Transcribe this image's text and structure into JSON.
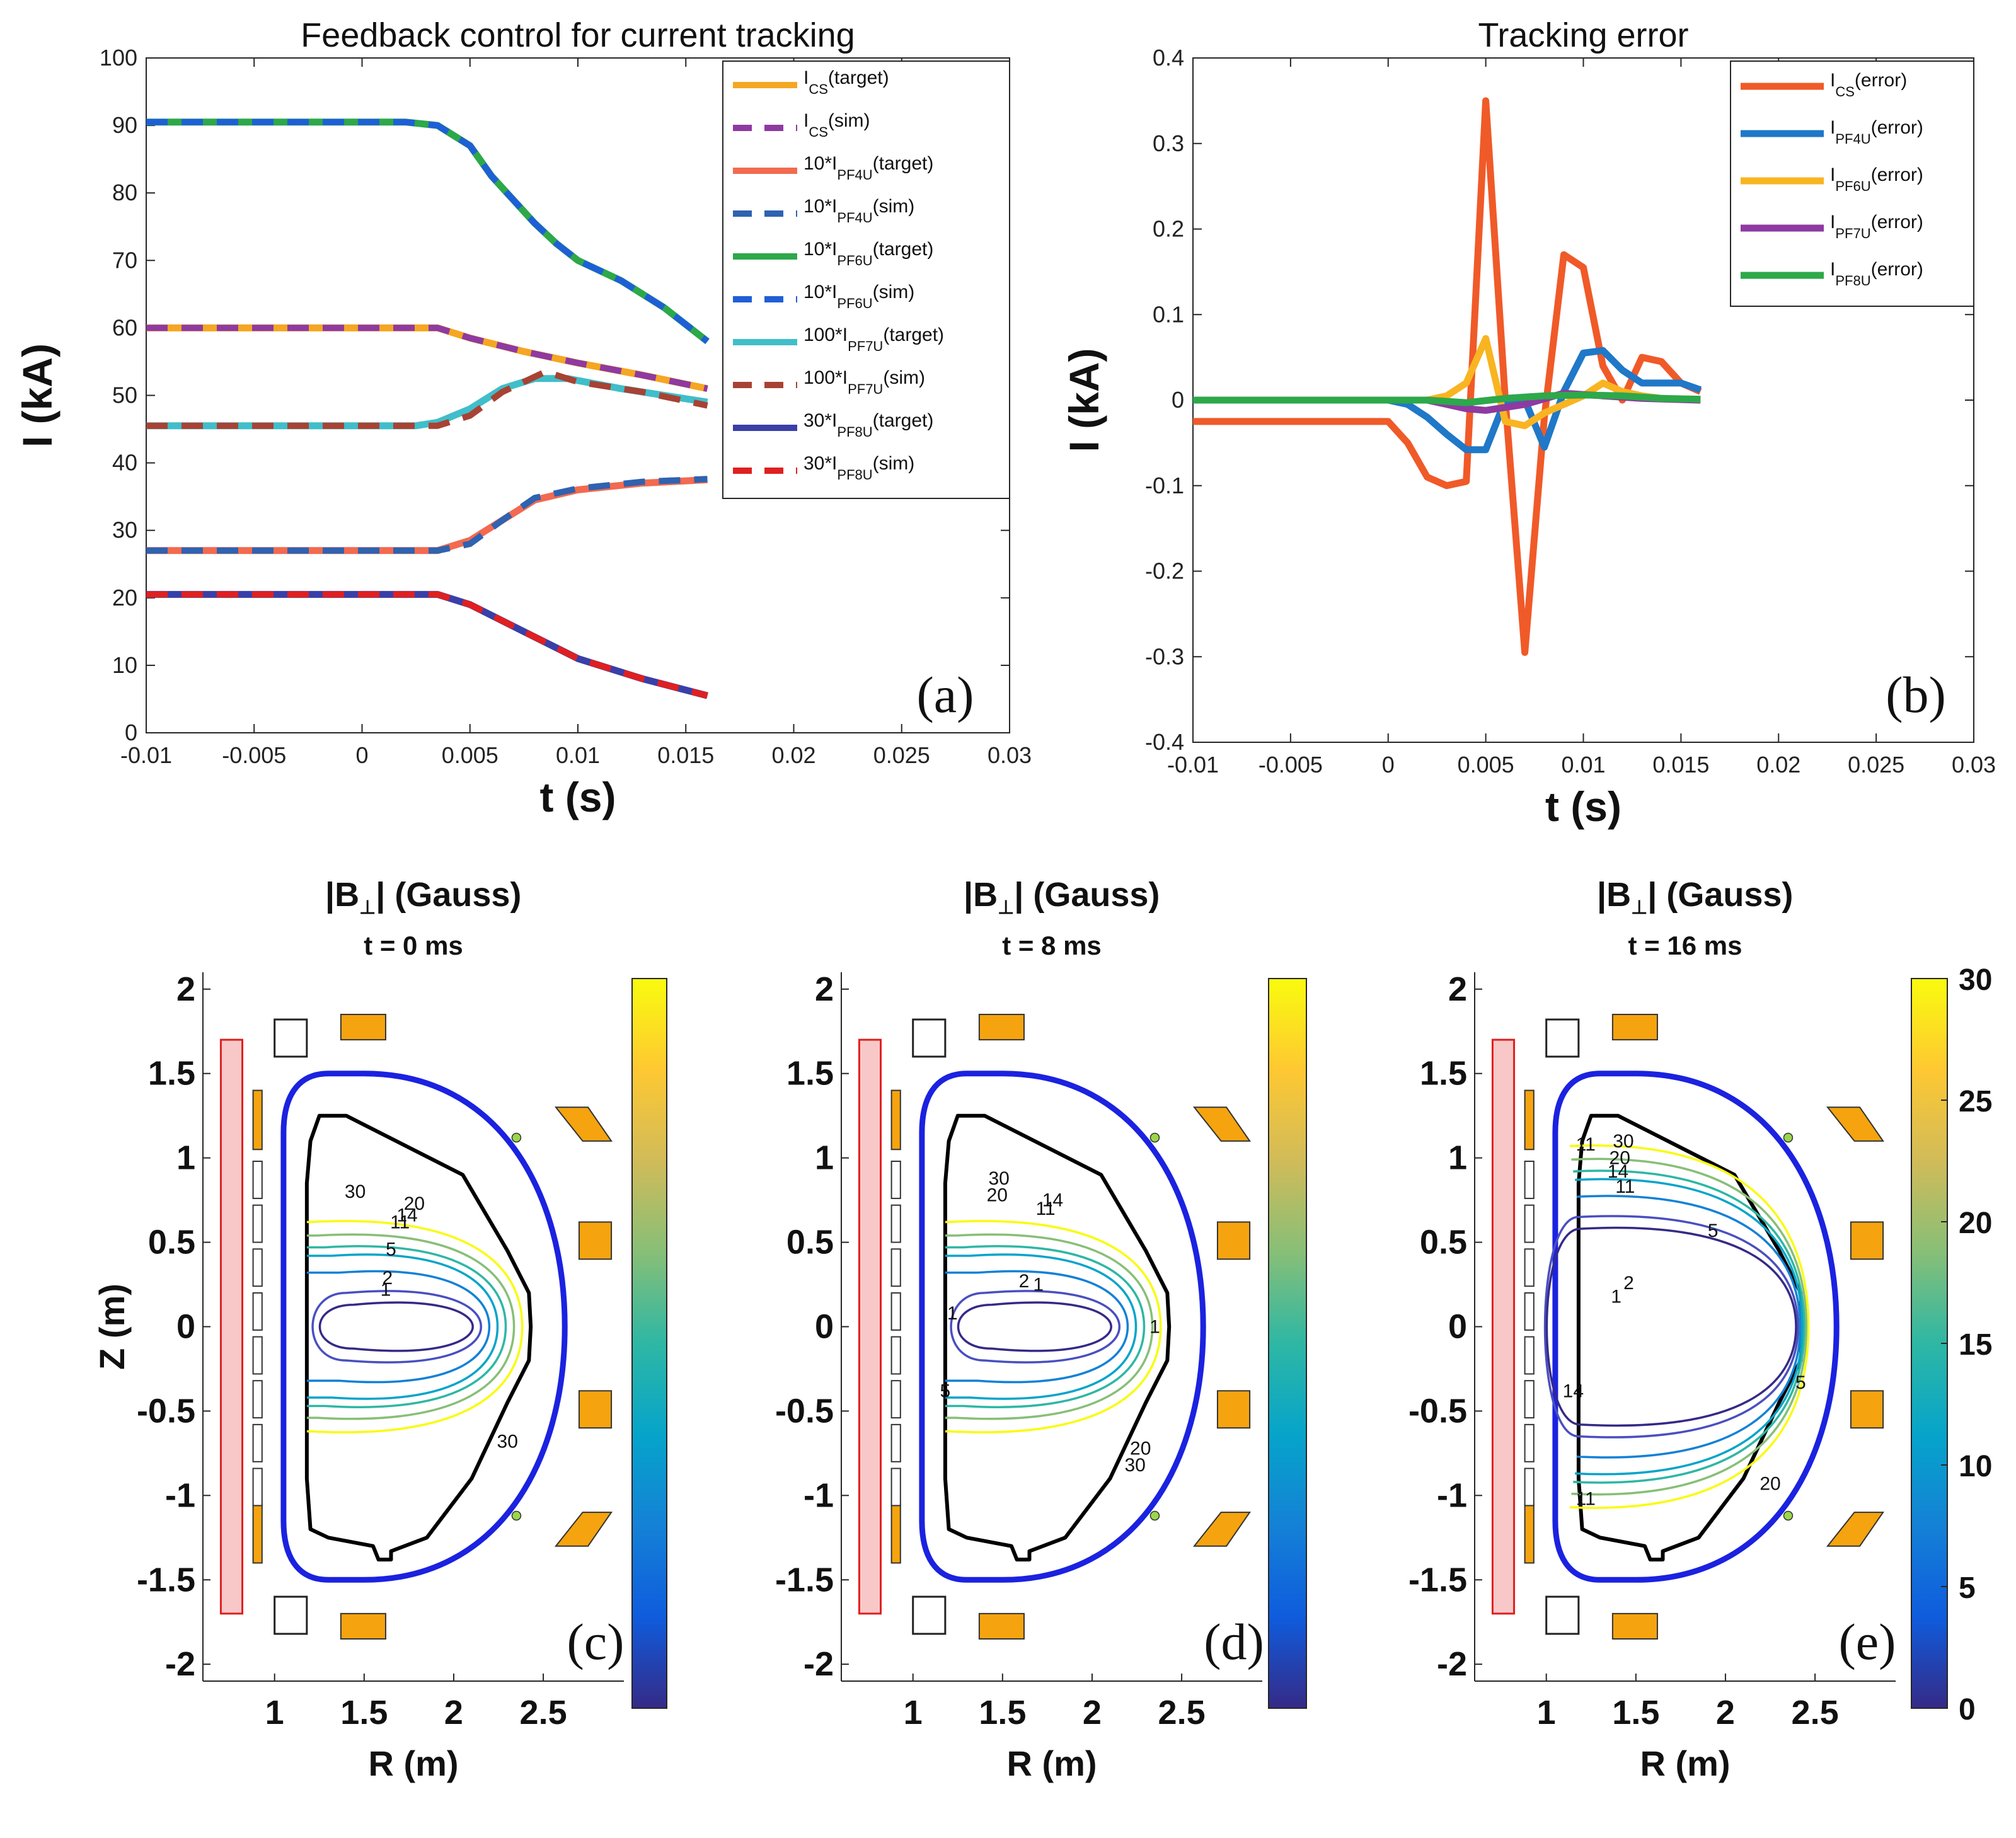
{
  "chart_data": [
    {
      "id": "a",
      "type": "line",
      "title": "Feedback control for current tracking",
      "xlabel": "t (s)",
      "ylabel": "I (kA)",
      "xlim": [
        -0.01,
        0.03
      ],
      "ylim": [
        0,
        100
      ],
      "xticks": [
        "-0.01",
        "-0.005",
        "0",
        "0.005",
        "0.01",
        "0.015",
        "0.02",
        "0.025",
        "0.03"
      ],
      "yticks": [
        "0",
        "10",
        "20",
        "30",
        "40",
        "50",
        "60",
        "70",
        "80",
        "90",
        "100"
      ],
      "panel_label": "(a)",
      "series": [
        {
          "name": "I_CS(target)",
          "legend_main": "I",
          "legend_sub": "CS",
          "legend_tail": "(target)",
          "color": "#F5A623",
          "dash": false,
          "x": [
            -0.01,
            0.0035,
            0.005,
            0.0075,
            0.01,
            0.013,
            0.016
          ],
          "y": [
            60,
            60,
            58.5,
            56.5,
            54.8,
            53,
            51
          ]
        },
        {
          "name": "I_CS(sim)",
          "legend_main": "I",
          "legend_sub": "CS",
          "legend_tail": "(sim)",
          "color": "#8E3AA1",
          "dash": true,
          "x": [
            -0.01,
            0.0035,
            0.005,
            0.0075,
            0.01,
            0.013,
            0.016
          ],
          "y": [
            60,
            60,
            58.5,
            56.5,
            54.8,
            53,
            51
          ]
        },
        {
          "name": "10*I_PF4U(target)",
          "legend_main": "10*I",
          "legend_sub": "PF4U",
          "legend_tail": "(target)",
          "color": "#F26A50",
          "dash": false,
          "x": [
            -0.01,
            0.0035,
            0.005,
            0.0065,
            0.008,
            0.01,
            0.013,
            0.016
          ],
          "y": [
            27,
            27,
            28.5,
            31.5,
            34.5,
            36,
            37,
            37.5
          ]
        },
        {
          "name": "10*I_PF4U(sim)",
          "legend_main": "10*I",
          "legend_sub": "PF4U",
          "legend_tail": "(sim)",
          "color": "#2F62B0",
          "dash": true,
          "x": [
            -0.01,
            0.0035,
            0.005,
            0.0065,
            0.008,
            0.01,
            0.013,
            0.016
          ],
          "y": [
            27,
            27,
            28,
            31.5,
            34.8,
            36.2,
            37.2,
            37.6
          ]
        },
        {
          "name": "10*I_PF6U(target)",
          "legend_main": "10*I",
          "legend_sub": "PF6U",
          "legend_tail": "(target)",
          "color": "#2DA84A",
          "dash": false,
          "x": [
            -0.01,
            0.002,
            0.0035,
            0.004,
            0.005,
            0.006,
            0.008,
            0.009,
            0.01,
            0.012,
            0.014,
            0.016
          ],
          "y": [
            90.5,
            90.5,
            90,
            89,
            87,
            82.5,
            75.5,
            72.5,
            70,
            67,
            63,
            58
          ]
        },
        {
          "name": "10*I_PF6U(sim)",
          "legend_main": "10*I",
          "legend_sub": "PF6U",
          "legend_tail": "(sim)",
          "color": "#1F5FD6",
          "dash": true,
          "x": [
            -0.01,
            0.002,
            0.0035,
            0.004,
            0.005,
            0.006,
            0.008,
            0.009,
            0.01,
            0.012,
            0.014,
            0.016
          ],
          "y": [
            90.5,
            90.5,
            90,
            89,
            87,
            82.5,
            75.5,
            72.5,
            70,
            67,
            63,
            58
          ]
        },
        {
          "name": "100*I_PF7U(target)",
          "legend_main": "100*I",
          "legend_sub": "PF7U",
          "legend_tail": "(target)",
          "color": "#40BEC9",
          "dash": false,
          "x": [
            -0.01,
            0.0025,
            0.0035,
            0.005,
            0.0065,
            0.008,
            0.0095,
            0.012,
            0.016
          ],
          "y": [
            45.5,
            45.5,
            46,
            48,
            51,
            52.5,
            52.5,
            51,
            49
          ]
        },
        {
          "name": "100*I_PF7U(sim)",
          "legend_main": "100*I",
          "legend_sub": "PF7U",
          "legend_tail": "(sim)",
          "color": "#A84234",
          "dash": true,
          "x": [
            -0.01,
            0.0035,
            0.005,
            0.0065,
            0.0085,
            0.01,
            0.013,
            0.016
          ],
          "y": [
            45.5,
            45.5,
            47,
            50.5,
            53.5,
            52,
            50.5,
            48.5
          ]
        },
        {
          "name": "30*I_PF8U(target)",
          "legend_main": "30*I",
          "legend_sub": "PF8U",
          "legend_tail": "(target)",
          "color": "#3A3FA8",
          "dash": false,
          "x": [
            -0.01,
            0.0035,
            0.005,
            0.0075,
            0.01,
            0.013,
            0.016
          ],
          "y": [
            20.5,
            20.5,
            19,
            15,
            11,
            8,
            5.5
          ]
        },
        {
          "name": "30*I_PF8U(sim)",
          "legend_main": "30*I",
          "legend_sub": "PF8U",
          "legend_tail": "(sim)",
          "color": "#E02020",
          "dash": true,
          "x": [
            -0.01,
            0.0035,
            0.005,
            0.0075,
            0.01,
            0.013,
            0.016
          ],
          "y": [
            20.5,
            20.5,
            19,
            15,
            11,
            8,
            5.5
          ]
        }
      ]
    },
    {
      "id": "b",
      "type": "line",
      "title": "Tracking error",
      "xlabel": "t (s)",
      "ylabel": "I (kA)",
      "xlim": [
        -0.01,
        0.03
      ],
      "ylim": [
        -0.4,
        0.4
      ],
      "xticks": [
        "-0.01",
        "-0.005",
        "0",
        "0.005",
        "0.01",
        "0.015",
        "0.02",
        "0.025",
        "0.03"
      ],
      "yticks": [
        "-0.4",
        "-0.3",
        "-0.2",
        "-0.1",
        "0",
        "0.1",
        "0.2",
        "0.3",
        "0.4"
      ],
      "panel_label": "(b)",
      "series": [
        {
          "name": "I_CS(error)",
          "legend_main": "I",
          "legend_sub": "CS",
          "legend_tail": "(error)",
          "color": "#F05A28",
          "x": [
            -0.01,
            0,
            0.001,
            0.002,
            0.003,
            0.004,
            0.005,
            0.006,
            0.007,
            0.008,
            0.009,
            0.01,
            0.011,
            0.012,
            0.013,
            0.014,
            0.015,
            0.016
          ],
          "y": [
            -0.025,
            -0.025,
            -0.05,
            -0.09,
            -0.1,
            -0.095,
            0.35,
            0.0,
            -0.295,
            -0.02,
            0.17,
            0.155,
            0.04,
            0.0,
            0.05,
            0.045,
            0.02,
            0.01
          ]
        },
        {
          "name": "I_PF4U(error)",
          "legend_main": "I",
          "legend_sub": "PF4U",
          "legend_tail": "(error)",
          "color": "#1F78C8",
          "x": [
            -0.01,
            0,
            0.001,
            0.002,
            0.003,
            0.004,
            0.005,
            0.006,
            0.007,
            0.008,
            0.009,
            0.01,
            0.011,
            0.012,
            0.013,
            0.014,
            0.015,
            0.016
          ],
          "y": [
            0,
            0,
            -0.005,
            -0.02,
            -0.04,
            -0.058,
            -0.058,
            0,
            0.0,
            -0.055,
            0.01,
            0.055,
            0.058,
            0.035,
            0.02,
            0.02,
            0.02,
            0.012
          ]
        },
        {
          "name": "I_PF6U(error)",
          "legend_main": "I",
          "legend_sub": "PF6U",
          "legend_tail": "(error)",
          "color": "#F9B421",
          "x": [
            -0.01,
            0,
            0.001,
            0.002,
            0.003,
            0.004,
            0.005,
            0.006,
            0.007,
            0.008,
            0.009,
            0.01,
            0.011,
            0.012,
            0.013,
            0.014,
            0.016
          ],
          "y": [
            0,
            0,
            0,
            0,
            0.005,
            0.02,
            0.072,
            -0.025,
            -0.03,
            -0.015,
            -0.005,
            0.005,
            0.02,
            0.01,
            0.005,
            0.002,
            0.0
          ]
        },
        {
          "name": "I_PF7U(error)",
          "legend_main": "I",
          "legend_sub": "PF7U",
          "legend_tail": "(error)",
          "color": "#8E3AA1",
          "x": [
            -0.01,
            0.002,
            0.004,
            0.005,
            0.007,
            0.009,
            0.011,
            0.013,
            0.016
          ],
          "y": [
            0,
            0,
            -0.01,
            -0.012,
            -0.005,
            0.008,
            0.005,
            0.002,
            0.0
          ]
        },
        {
          "name": "I_PF8U(error)",
          "legend_main": "I",
          "legend_sub": "PF8U",
          "legend_tail": "(error)",
          "color": "#2DA84A",
          "x": [
            -0.01,
            0.002,
            0.004,
            0.006,
            0.008,
            0.01,
            0.012,
            0.014,
            0.016
          ],
          "y": [
            0,
            0,
            -0.003,
            0.002,
            0.005,
            0.006,
            0.005,
            0.002,
            0.001
          ]
        }
      ]
    },
    {
      "id": "c",
      "type": "contour",
      "title": "|B",
      "title_sub": "⊥",
      "title_tail": "| (Gauss)",
      "subtitle": "t = 0 ms",
      "xlabel": "R (m)",
      "ylabel": "Z (m)",
      "xlim": [
        0.6,
        2.95
      ],
      "ylim": [
        -2.1,
        2.1
      ],
      "xticks": [
        "1",
        "1.5",
        "2",
        "2.5"
      ],
      "yticks": [
        "-2",
        "-1.5",
        "-1",
        "-0.5",
        "0",
        "0.5",
        "1",
        "1.5",
        "2"
      ],
      "panel_label": "(c)",
      "contour_labels": [
        {
          "text": "30",
          "r": 1.45,
          "z": 0.8
        },
        {
          "text": "20",
          "r": 1.78,
          "z": 0.73
        },
        {
          "text": "14",
          "r": 1.74,
          "z": 0.66
        },
        {
          "text": "11",
          "r": 1.7,
          "z": 0.62
        },
        {
          "text": "5",
          "r": 1.65,
          "z": 0.46
        },
        {
          "text": "2",
          "r": 1.63,
          "z": 0.29
        },
        {
          "text": "1",
          "r": 1.62,
          "z": 0.22
        },
        {
          "text": "30",
          "r": 2.3,
          "z": -0.68
        }
      ]
    },
    {
      "id": "d",
      "type": "contour",
      "title": "|B",
      "title_sub": "⊥",
      "title_tail": "| (Gauss)",
      "subtitle": "t = 8 ms",
      "xlabel": "R (m)",
      "ylabel": "",
      "xlim": [
        0.6,
        2.95
      ],
      "ylim": [
        -2.1,
        2.1
      ],
      "xticks": [
        "1",
        "1.5",
        "2",
        "2.5"
      ],
      "yticks": [
        "-2",
        "-1.5",
        "-1",
        "-0.5",
        "0",
        "0.5",
        "1",
        "1.5",
        "2"
      ],
      "panel_label": "(d)",
      "contour_labels": [
        {
          "text": "30",
          "r": 1.48,
          "z": 0.88
        },
        {
          "text": "20",
          "r": 1.47,
          "z": 0.78
        },
        {
          "text": "14",
          "r": 1.78,
          "z": 0.75
        },
        {
          "text": "11",
          "r": 1.74,
          "z": 0.7
        },
        {
          "text": "2",
          "r": 1.62,
          "z": 0.27
        },
        {
          "text": "1",
          "r": 1.7,
          "z": 0.25
        },
        {
          "text": "1",
          "r": 1.22,
          "z": 0.08
        },
        {
          "text": "5",
          "r": 1.18,
          "z": -0.38
        },
        {
          "text": "20",
          "r": 2.27,
          "z": -0.72
        },
        {
          "text": "30",
          "r": 2.24,
          "z": -0.82
        },
        {
          "text": "1",
          "r": 2.35,
          "z": 0.0
        }
      ]
    },
    {
      "id": "e",
      "type": "contour",
      "title": "|B",
      "title_sub": "⊥",
      "title_tail": "| (Gauss)",
      "subtitle": "t = 16 ms",
      "xlabel": "R (m)",
      "ylabel": "",
      "xlim": [
        0.6,
        2.95
      ],
      "ylim": [
        -2.1,
        2.1
      ],
      "xticks": [
        "1",
        "1.5",
        "2",
        "2.5"
      ],
      "yticks": [
        "-2",
        "-1.5",
        "-1",
        "-0.5",
        "0",
        "0.5",
        "1",
        "1.5",
        "2"
      ],
      "panel_label": "(e)",
      "colorbar_ticks": [
        "0",
        "5",
        "10",
        "15",
        "20",
        "25",
        "30"
      ],
      "colorbar_range": [
        0,
        30
      ],
      "contour_labels": [
        {
          "text": "30",
          "r": 1.43,
          "z": 1.1
        },
        {
          "text": "20",
          "r": 1.41,
          "z": 1.0
        },
        {
          "text": "14",
          "r": 1.4,
          "z": 0.92
        },
        {
          "text": "11",
          "r": 1.44,
          "z": 0.83
        },
        {
          "text": "5",
          "r": 1.93,
          "z": 0.57
        },
        {
          "text": "2",
          "r": 1.46,
          "z": 0.26
        },
        {
          "text": "1",
          "r": 1.39,
          "z": 0.18
        },
        {
          "text": "5",
          "r": 2.42,
          "z": -0.33
        },
        {
          "text": "11",
          "r": 1.22,
          "z": 1.08
        },
        {
          "text": "14",
          "r": 1.15,
          "z": -0.38
        },
        {
          "text": "11",
          "r": 1.22,
          "z": -1.02
        },
        {
          "text": "20",
          "r": 2.25,
          "z": -0.93
        }
      ]
    }
  ],
  "colors": {
    "vessel": "#1B22E0",
    "limiter": "#000000",
    "pf_coil": "#F5A40F",
    "solenoid": "#F8C8C8",
    "solenoid_edge": "#E02020",
    "parula": [
      "#352A87",
      "#0F5CDD",
      "#1481D6",
      "#06A4CA",
      "#2EB7A4",
      "#87BF77",
      "#D1BB59",
      "#FEC832",
      "#F9FB0E"
    ]
  }
}
